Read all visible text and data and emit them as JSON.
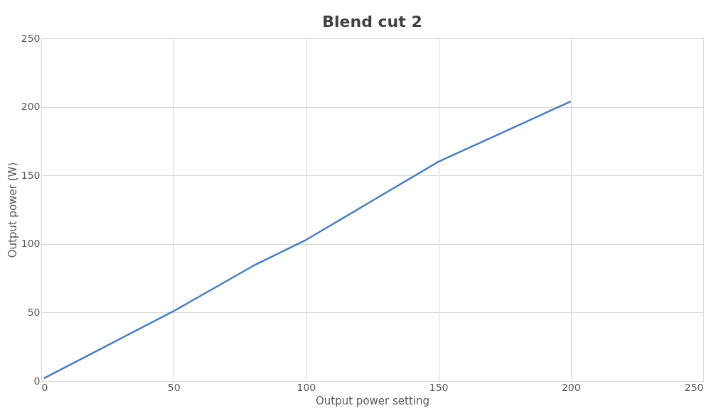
{
  "chart_data": {
    "type": "line",
    "title": "Blend cut 2",
    "xlabel": "Output power setting",
    "ylabel": "Output power (W)",
    "x": [
      1,
      50,
      80,
      100,
      150,
      200
    ],
    "series": [
      {
        "color": "#4a7ebb",
        "values": [
          2,
          51,
          84,
          103,
          160,
          204
        ]
      }
    ],
    "xlim": [
      0,
      250
    ],
    "xticks": [
      0,
      50,
      100,
      150,
      200,
      250
    ],
    "ylim": [
      0,
      250
    ],
    "yticks": [
      0,
      50,
      100,
      150,
      200,
      250
    ],
    "grid": true,
    "marker": "none",
    "line_style": "solid"
  }
}
